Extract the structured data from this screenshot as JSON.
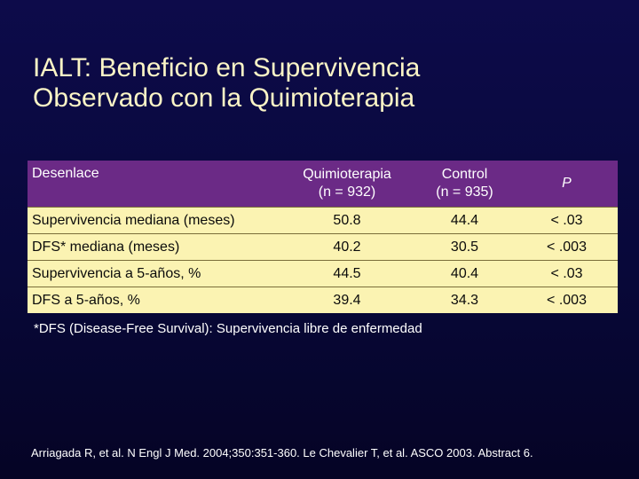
{
  "slide": {
    "title_line1": "IALT: Beneficio en Supervivencia",
    "title_line2": "Observado con la Quimioterapia"
  },
  "table": {
    "headers": [
      {
        "line1": "Desenlace",
        "line2": ""
      },
      {
        "line1": "Quimioterapia",
        "line2": "(n = 932)"
      },
      {
        "line1": "Control",
        "line2": "(n = 935)"
      },
      {
        "line1": "P",
        "line2": ""
      }
    ],
    "rows": [
      [
        "Supervivencia mediana (meses)",
        "50.8",
        "44.4",
        "< .03"
      ],
      [
        "DFS* mediana (meses)",
        "40.2",
        "30.5",
        "< .003"
      ],
      [
        "Supervivencia a 5-años, %",
        "44.5",
        "40.4",
        "< .03"
      ],
      [
        "DFS a 5-años, %",
        "39.4",
        "34.3",
        "< .003"
      ]
    ]
  },
  "footnote": "*DFS (Disease-Free Survival): Supervivencia libre de enfermedad",
  "citation": "Arriagada R, et al. N Engl J Med. 2004;350:351-360. Le Chevalier T, et al. ASCO 2003. Abstract 6.",
  "colors": {
    "background": "#0a0a44",
    "title": "#fbf5c6",
    "header_fill": "#6b2a86",
    "cell_fill": "#fbf3b2"
  }
}
